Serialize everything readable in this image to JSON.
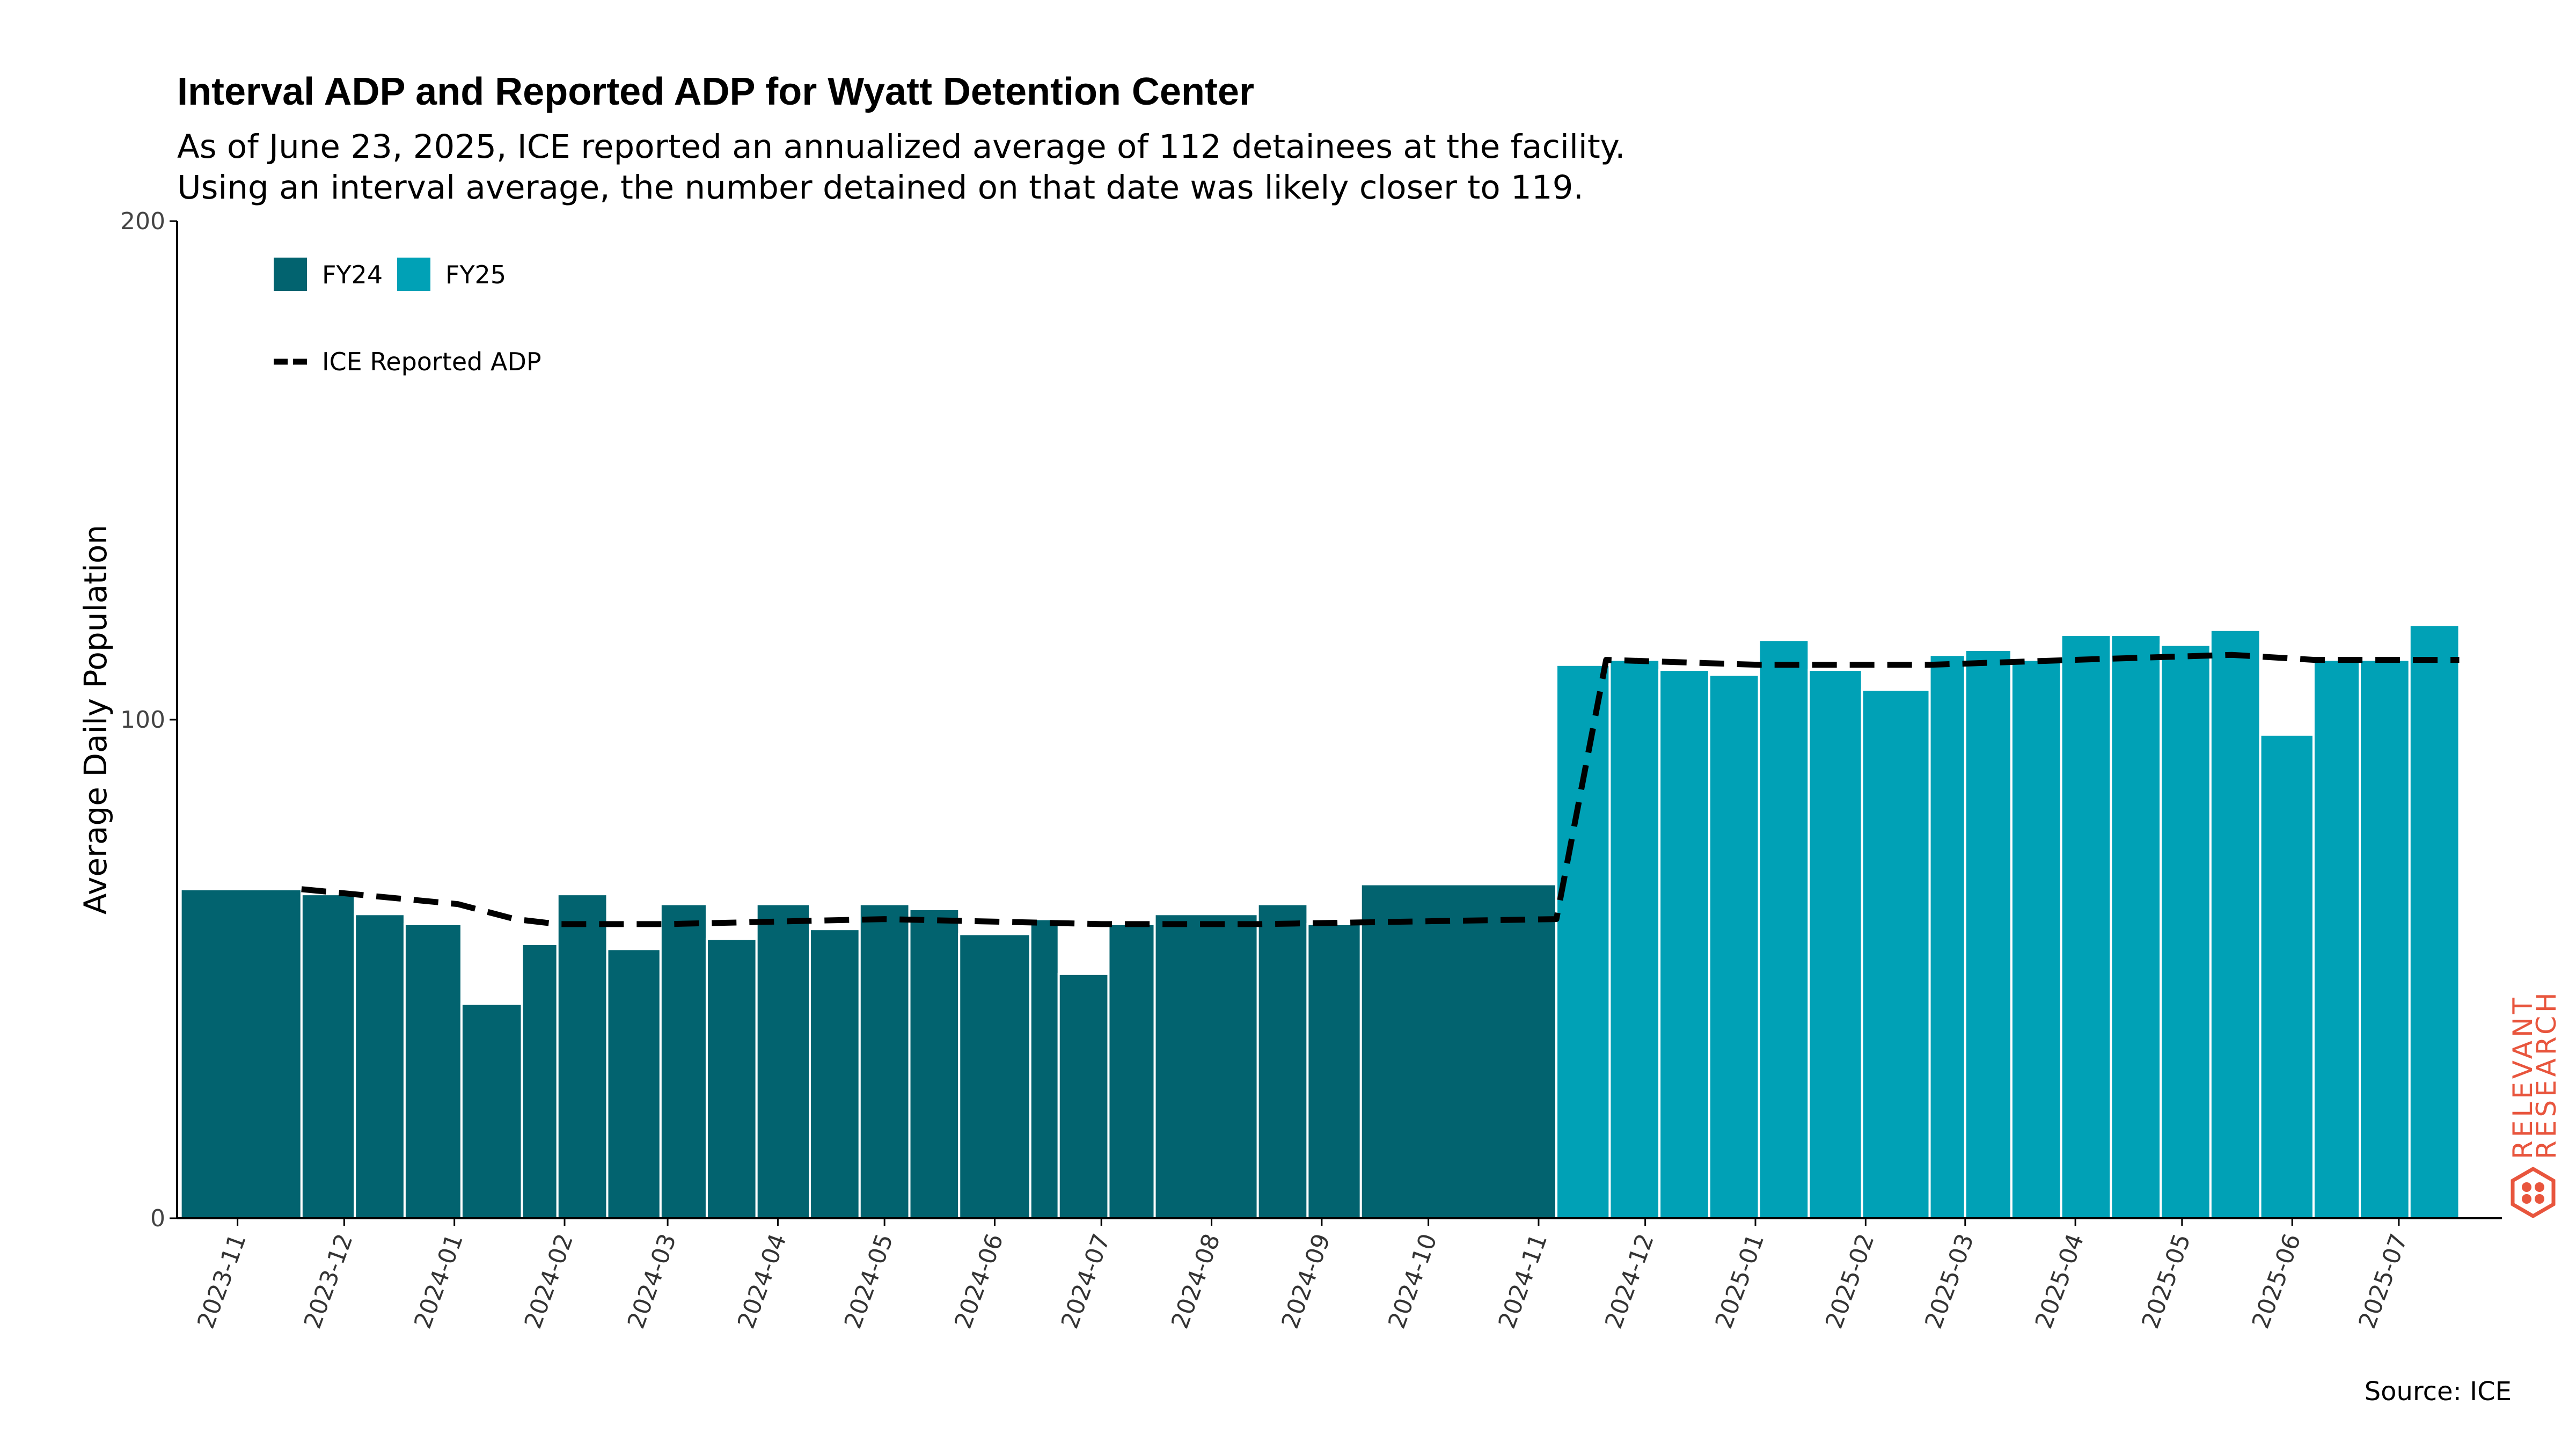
{
  "title": "Interval ADP and Reported ADP for Wyatt Detention Center",
  "subtitle_line1": "As of June 23, 2025, ICE reported an annualized average of 112 detainees at the facility.",
  "subtitle_line2": "Using an interval average, the number detained on that date was likely closer to 119.",
  "source": "Source: ICE",
  "logo": {
    "line1": "RELEVANT",
    "line2": "RESEARCH",
    "color": "#e8553d"
  },
  "colors": {
    "fy24": "#02636f",
    "fy25": "#00a1b6",
    "line": "#000000"
  },
  "chart_data": {
    "type": "bar",
    "ylabel": "Average Daily Population",
    "ylim": [
      0,
      200
    ],
    "yticks": [
      0,
      100,
      200
    ],
    "xlim": [
      "2023-10-15",
      "2025-07-30"
    ],
    "xticks": [
      "2023-11",
      "2023-12",
      "2024-01",
      "2024-02",
      "2024-03",
      "2024-04",
      "2024-05",
      "2024-06",
      "2024-07",
      "2024-08",
      "2024-09",
      "2024-10",
      "2024-11",
      "2024-12",
      "2025-01",
      "2025-02",
      "2025-03",
      "2025-04",
      "2025-05",
      "2025-06",
      "2025-07"
    ],
    "legend": [
      {
        "name": "FY24",
        "swatch": "fy24"
      },
      {
        "name": "FY25",
        "swatch": "fy25"
      },
      {
        "name": "ICE Reported ADP",
        "swatch": "dashed-line"
      }
    ],
    "legend_position": "top-left",
    "bars": [
      {
        "start": "2023-10-16",
        "end": "2023-11-19",
        "value": 66,
        "fy": "FY24"
      },
      {
        "start": "2023-11-19",
        "end": "2023-12-04",
        "value": 65,
        "fy": "FY24"
      },
      {
        "start": "2023-12-04",
        "end": "2023-12-18",
        "value": 61,
        "fy": "FY24"
      },
      {
        "start": "2023-12-18",
        "end": "2024-01-03",
        "value": 59,
        "fy": "FY24"
      },
      {
        "start": "2024-01-03",
        "end": "2024-01-20",
        "value": 43,
        "fy": "FY24"
      },
      {
        "start": "2024-01-20",
        "end": "2024-01-30",
        "value": 55,
        "fy": "FY24"
      },
      {
        "start": "2024-01-30",
        "end": "2024-02-13",
        "value": 65,
        "fy": "FY24"
      },
      {
        "start": "2024-02-13",
        "end": "2024-02-28",
        "value": 54,
        "fy": "FY24"
      },
      {
        "start": "2024-02-28",
        "end": "2024-03-12",
        "value": 63,
        "fy": "FY24"
      },
      {
        "start": "2024-03-12",
        "end": "2024-03-26",
        "value": 56,
        "fy": "FY24"
      },
      {
        "start": "2024-03-26",
        "end": "2024-04-10",
        "value": 63,
        "fy": "FY24"
      },
      {
        "start": "2024-04-10",
        "end": "2024-04-24",
        "value": 58,
        "fy": "FY24"
      },
      {
        "start": "2024-04-24",
        "end": "2024-05-08",
        "value": 63,
        "fy": "FY24"
      },
      {
        "start": "2024-05-08",
        "end": "2024-05-22",
        "value": 62,
        "fy": "FY24"
      },
      {
        "start": "2024-05-22",
        "end": "2024-06-11",
        "value": 57,
        "fy": "FY24"
      },
      {
        "start": "2024-06-11",
        "end": "2024-06-19",
        "value": 60,
        "fy": "FY24"
      },
      {
        "start": "2024-06-19",
        "end": "2024-07-03",
        "value": 49,
        "fy": "FY24"
      },
      {
        "start": "2024-07-03",
        "end": "2024-07-16",
        "value": 59,
        "fy": "FY24"
      },
      {
        "start": "2024-07-16",
        "end": "2024-08-14",
        "value": 61,
        "fy": "FY24"
      },
      {
        "start": "2024-08-14",
        "end": "2024-08-28",
        "value": 63,
        "fy": "FY24"
      },
      {
        "start": "2024-08-28",
        "end": "2024-09-12",
        "value": 59,
        "fy": "FY24"
      },
      {
        "start": "2024-09-12",
        "end": "2024-11-06",
        "value": 67,
        "fy": "FY24"
      },
      {
        "start": "2024-11-06",
        "end": "2024-11-21",
        "value": 111,
        "fy": "FY25"
      },
      {
        "start": "2024-11-21",
        "end": "2024-12-05",
        "value": 112,
        "fy": "FY25"
      },
      {
        "start": "2024-12-05",
        "end": "2024-12-19",
        "value": 110,
        "fy": "FY25"
      },
      {
        "start": "2024-12-19",
        "end": "2025-01-02",
        "value": 109,
        "fy": "FY25"
      },
      {
        "start": "2025-01-02",
        "end": "2025-01-16",
        "value": 116,
        "fy": "FY25"
      },
      {
        "start": "2025-01-16",
        "end": "2025-01-31",
        "value": 110,
        "fy": "FY25"
      },
      {
        "start": "2025-01-31",
        "end": "2025-02-19",
        "value": 106,
        "fy": "FY25"
      },
      {
        "start": "2025-02-19",
        "end": "2025-03-01",
        "value": 113,
        "fy": "FY25"
      },
      {
        "start": "2025-03-01",
        "end": "2025-03-14",
        "value": 114,
        "fy": "FY25"
      },
      {
        "start": "2025-03-14",
        "end": "2025-03-28",
        "value": 112,
        "fy": "FY25"
      },
      {
        "start": "2025-03-28",
        "end": "2025-04-11",
        "value": 117,
        "fy": "FY25"
      },
      {
        "start": "2025-04-11",
        "end": "2025-04-25",
        "value": 117,
        "fy": "FY25"
      },
      {
        "start": "2025-04-25",
        "end": "2025-05-09",
        "value": 115,
        "fy": "FY25"
      },
      {
        "start": "2025-05-09",
        "end": "2025-05-23",
        "value": 118,
        "fy": "FY25"
      },
      {
        "start": "2025-05-23",
        "end": "2025-06-07",
        "value": 97,
        "fy": "FY25"
      },
      {
        "start": "2025-06-07",
        "end": "2025-06-20",
        "value": 112,
        "fy": "FY25"
      },
      {
        "start": "2025-06-20",
        "end": "2025-07-04",
        "value": 112,
        "fy": "FY25"
      },
      {
        "start": "2025-07-04",
        "end": "2025-07-18",
        "value": 119,
        "fy": "FY25"
      }
    ],
    "series": [
      {
        "name": "ICE Reported ADP",
        "style": "dashed",
        "points": [
          [
            "2023-11-19",
            66
          ],
          [
            "2024-01-02",
            63
          ],
          [
            "2024-01-18",
            60
          ],
          [
            "2024-01-30",
            59
          ],
          [
            "2024-03-01",
            59
          ],
          [
            "2024-05-01",
            60
          ],
          [
            "2024-07-01",
            59
          ],
          [
            "2024-08-15",
            59
          ],
          [
            "2024-11-06",
            60
          ],
          [
            "2024-11-20",
            112
          ],
          [
            "2025-01-02",
            111
          ],
          [
            "2025-02-19",
            111
          ],
          [
            "2025-04-01",
            112
          ],
          [
            "2025-05-15",
            113
          ],
          [
            "2025-06-07",
            112
          ],
          [
            "2025-07-18",
            112
          ]
        ]
      }
    ]
  }
}
